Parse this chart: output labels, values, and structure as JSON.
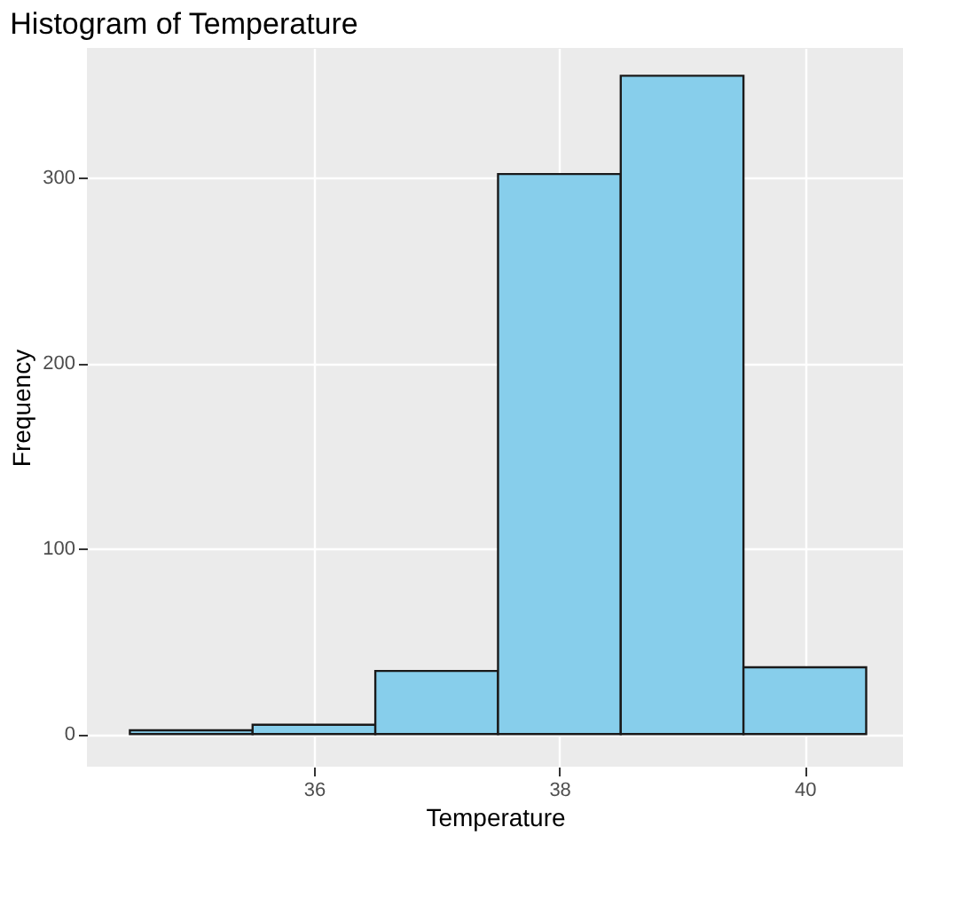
{
  "chart_data": {
    "type": "histogram",
    "title": "Histogram of Temperature",
    "xlabel": "Temperature",
    "ylabel": "Frequency",
    "bins": [
      34.5,
      35.5,
      36.5,
      37.5,
      38.5,
      39.5,
      40.5
    ],
    "values": [
      2,
      5,
      34,
      302,
      355,
      36
    ],
    "color": "#87ceeb",
    "xlim": [
      34.15,
      40.8
    ],
    "xticks": [
      36,
      38,
      40
    ],
    "ylim": [
      -17.6,
      370
    ],
    "yticks": [
      0,
      100,
      200,
      300
    ],
    "grid": true
  }
}
